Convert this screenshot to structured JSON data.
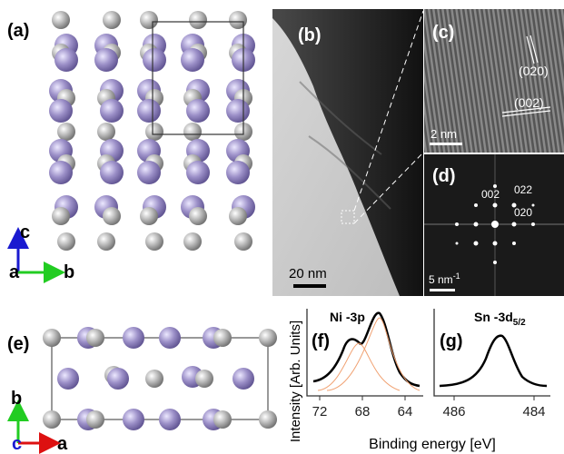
{
  "panels": {
    "a": {
      "label": "(a)",
      "axis_c": "c",
      "axis_a": "a",
      "axis_b": "b"
    },
    "b": {
      "label": "(b)",
      "scale_bar": "20 nm"
    },
    "c": {
      "label": "(c)",
      "plane_1": "(020)",
      "plane_2": "(002)",
      "scale_bar": "2 nm"
    },
    "d": {
      "label": "(d)",
      "spot_1": "002",
      "spot_2": "022",
      "spot_3": "020",
      "scale_bar": "5 nm",
      "scale_bar_sup": "-1"
    },
    "e": {
      "label": "(e)",
      "axis_b": "b",
      "axis_c": "c",
      "axis_a": "a"
    },
    "f": {
      "label": "(f)",
      "title": "Ni -3p",
      "ticks": [
        72,
        68,
        64
      ]
    },
    "g": {
      "label": "(g)",
      "title": "Sn -3d",
      "title_sub": "5/2",
      "ticks": [
        486,
        484
      ]
    },
    "y_label": "Intensity [Arb. Units]",
    "x_label": "Binding energy [eV]"
  }
}
